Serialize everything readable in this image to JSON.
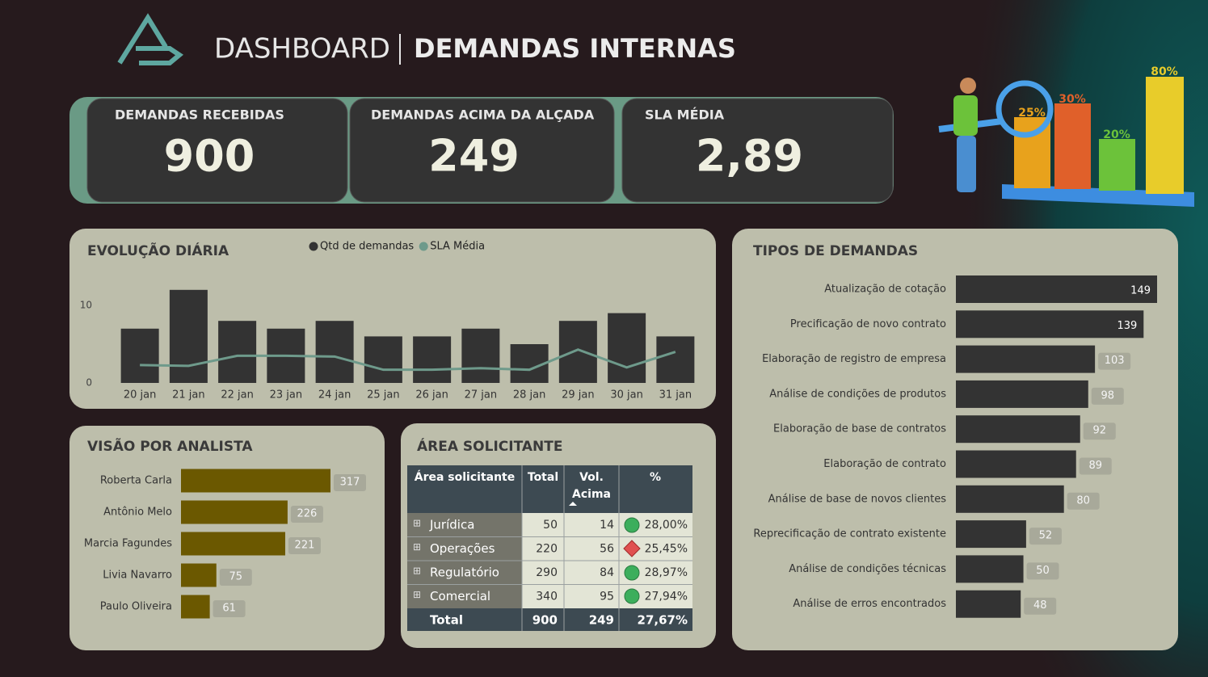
{
  "header": {
    "brand": "DASHBOARD",
    "title": "DEMANDAS INTERNAS"
  },
  "kpis": [
    {
      "label": "DEMANDAS RECEBIDAS",
      "value": "900"
    },
    {
      "label": "DEMANDAS ACIMA DA ALÇADA",
      "value": "249"
    },
    {
      "label": "SLA MÉDIA",
      "value": "2,89"
    }
  ],
  "illustration": {
    "labels": [
      "25%",
      "30%",
      "20%",
      "80%"
    ]
  },
  "chart_data": [
    {
      "type": "combo",
      "title": "EVOLUÇÃO DIÁRIA",
      "categories": [
        "20 jan",
        "21 jan",
        "22 jan",
        "23 jan",
        "24 jan",
        "25 jan",
        "26 jan",
        "27 jan",
        "28 jan",
        "29 jan",
        "30 jan",
        "31 jan"
      ],
      "series": [
        {
          "name": "Qtd de demandas",
          "type": "bar",
          "color": "#333333",
          "values": [
            7,
            12,
            8,
            7,
            8,
            6,
            6,
            7,
            5,
            8,
            9,
            6
          ]
        },
        {
          "name": "SLA Média",
          "type": "line",
          "color": "#6e9a8b",
          "values": [
            2.3,
            2.2,
            3.5,
            3.5,
            3.4,
            1.7,
            1.7,
            1.9,
            1.7,
            4.3,
            2.0,
            4.0
          ]
        }
      ],
      "ylim": [
        0,
        13
      ],
      "yticks": [
        0,
        10
      ],
      "grid": false
    },
    {
      "type": "hbar",
      "title": "VISÃO POR ANALISTA",
      "categories": [
        "Roberta Carla",
        "Antônio Melo",
        "Marcia Fagundes",
        "Livia Navarro",
        "Paulo Oliveira"
      ],
      "values": [
        317,
        226,
        221,
        75,
        61
      ],
      "color": "#6b5800",
      "xlim": [
        0,
        317
      ]
    },
    {
      "type": "hbar",
      "title": "TIPOS DE DEMANDAS",
      "categories": [
        "Atualização de cotação",
        "Precificação de novo contrato",
        "Elaboração de registro de empresa",
        "Análise de condições de produtos",
        "Elaboração de base de contratos",
        "Elaboração de contrato",
        "Análise de base de novos clientes",
        "Reprecificação de contrato existente",
        "Análise de condições técnicas",
        "Análise de erros encontrados"
      ],
      "values": [
        149,
        139,
        103,
        98,
        92,
        89,
        80,
        52,
        50,
        48
      ],
      "color": "#333333",
      "xlim": [
        0,
        149
      ]
    }
  ],
  "table": {
    "title": "ÁREA SOLICITANTE",
    "header": [
      "Área solicitante",
      "Total",
      "Vol. Acima",
      "%"
    ],
    "rows": [
      [
        "Jurídica",
        "50",
        "14",
        "28,00%"
      ],
      [
        "Operações",
        "220",
        "56",
        "25,45%"
      ],
      [
        "Regulatório",
        "290",
        "84",
        "28,97%"
      ],
      [
        "Comercial",
        "340",
        "95",
        "27,94%"
      ]
    ],
    "total": [
      "Total",
      "900",
      "249",
      "27,67%"
    ]
  }
}
